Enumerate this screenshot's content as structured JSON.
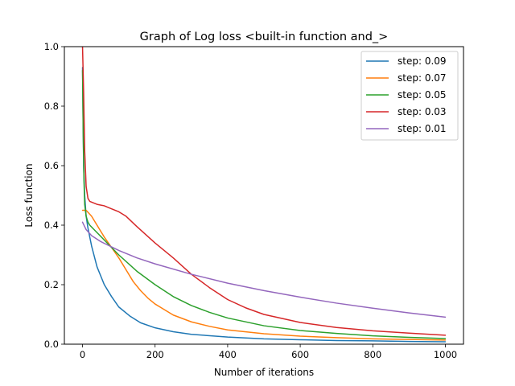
{
  "chart_data": {
    "type": "line",
    "title": "Graph of Log loss <built-in function and_>",
    "xlabel": "Number of iterations",
    "ylabel": "Loss function",
    "xlim": [
      -50,
      1050
    ],
    "ylim": [
      0,
      1
    ],
    "xticks": [
      0,
      200,
      400,
      600,
      800,
      1000
    ],
    "yticks": [
      0.0,
      0.2,
      0.4,
      0.6,
      0.8,
      1.0
    ],
    "xtick_labels": [
      "0",
      "200",
      "400",
      "600",
      "800",
      "1000"
    ],
    "ytick_labels": [
      "0.0",
      "0.2",
      "0.4",
      "0.6",
      "0.8",
      "1.0"
    ],
    "grid": false,
    "legend_position": "top-right",
    "series": [
      {
        "name": "step: 0.09",
        "color": "#1f77b4",
        "points": [
          [
            0,
            0.93
          ],
          [
            3,
            0.6
          ],
          [
            6,
            0.5
          ],
          [
            10,
            0.43
          ],
          [
            15,
            0.39
          ],
          [
            25,
            0.33
          ],
          [
            40,
            0.26
          ],
          [
            60,
            0.2
          ],
          [
            80,
            0.16
          ],
          [
            100,
            0.125
          ],
          [
            130,
            0.095
          ],
          [
            160,
            0.072
          ],
          [
            200,
            0.055
          ],
          [
            250,
            0.042
          ],
          [
            300,
            0.033
          ],
          [
            400,
            0.024
          ],
          [
            500,
            0.018
          ],
          [
            600,
            0.015
          ],
          [
            700,
            0.012
          ],
          [
            800,
            0.011
          ],
          [
            900,
            0.009
          ],
          [
            1000,
            0.008
          ]
        ]
      },
      {
        "name": "step: 0.07",
        "color": "#ff7f0e",
        "points": [
          [
            0,
            0.45
          ],
          [
            10,
            0.45
          ],
          [
            25,
            0.43
          ],
          [
            40,
            0.4
          ],
          [
            60,
            0.36
          ],
          [
            80,
            0.325
          ],
          [
            100,
            0.29
          ],
          [
            120,
            0.25
          ],
          [
            140,
            0.21
          ],
          [
            160,
            0.18
          ],
          [
            180,
            0.155
          ],
          [
            200,
            0.135
          ],
          [
            250,
            0.098
          ],
          [
            300,
            0.075
          ],
          [
            350,
            0.06
          ],
          [
            400,
            0.048
          ],
          [
            500,
            0.035
          ],
          [
            600,
            0.027
          ],
          [
            700,
            0.022
          ],
          [
            800,
            0.018
          ],
          [
            900,
            0.016
          ],
          [
            1000,
            0.014
          ]
        ]
      },
      {
        "name": "step: 0.05",
        "color": "#2ca02c",
        "points": [
          [
            0,
            0.92
          ],
          [
            2,
            0.7
          ],
          [
            4,
            0.55
          ],
          [
            6,
            0.47
          ],
          [
            10,
            0.43
          ],
          [
            15,
            0.41
          ],
          [
            20,
            0.4
          ],
          [
            40,
            0.375
          ],
          [
            60,
            0.35
          ],
          [
            80,
            0.325
          ],
          [
            100,
            0.3
          ],
          [
            150,
            0.245
          ],
          [
            200,
            0.2
          ],
          [
            250,
            0.16
          ],
          [
            300,
            0.13
          ],
          [
            350,
            0.107
          ],
          [
            400,
            0.088
          ],
          [
            500,
            0.062
          ],
          [
            600,
            0.046
          ],
          [
            700,
            0.036
          ],
          [
            800,
            0.028
          ],
          [
            900,
            0.023
          ],
          [
            1000,
            0.019
          ]
        ]
      },
      {
        "name": "step: 0.03",
        "color": "#d62728",
        "points": [
          [
            0,
            1.0
          ],
          [
            3,
            0.85
          ],
          [
            6,
            0.65
          ],
          [
            10,
            0.53
          ],
          [
            15,
            0.49
          ],
          [
            20,
            0.48
          ],
          [
            40,
            0.47
          ],
          [
            60,
            0.465
          ],
          [
            80,
            0.455
          ],
          [
            100,
            0.445
          ],
          [
            120,
            0.43
          ],
          [
            150,
            0.395
          ],
          [
            200,
            0.34
          ],
          [
            250,
            0.29
          ],
          [
            300,
            0.235
          ],
          [
            350,
            0.19
          ],
          [
            400,
            0.15
          ],
          [
            450,
            0.122
          ],
          [
            500,
            0.1
          ],
          [
            600,
            0.073
          ],
          [
            700,
            0.056
          ],
          [
            800,
            0.045
          ],
          [
            900,
            0.037
          ],
          [
            1000,
            0.03
          ]
        ]
      },
      {
        "name": "step: 0.01",
        "color": "#9467bd",
        "points": [
          [
            0,
            0.41
          ],
          [
            10,
            0.385
          ],
          [
            25,
            0.365
          ],
          [
            50,
            0.345
          ],
          [
            100,
            0.315
          ],
          [
            150,
            0.29
          ],
          [
            200,
            0.27
          ],
          [
            300,
            0.235
          ],
          [
            400,
            0.205
          ],
          [
            500,
            0.18
          ],
          [
            600,
            0.158
          ],
          [
            700,
            0.138
          ],
          [
            800,
            0.121
          ],
          [
            900,
            0.105
          ],
          [
            1000,
            0.091
          ]
        ]
      }
    ]
  }
}
